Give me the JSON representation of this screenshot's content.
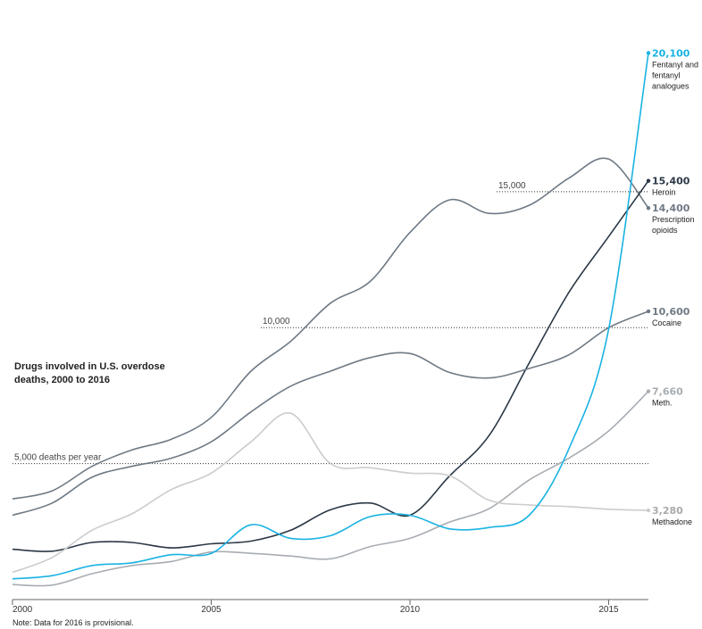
{
  "chart_data": {
    "type": "line",
    "title_lines": [
      "Drugs involved in U.S. overdose",
      "deaths, 2000 to 2016"
    ],
    "note": "Note: Data for 2016 is provisional.",
    "x": [
      2000,
      2001,
      2002,
      2003,
      2004,
      2005,
      2006,
      2007,
      2008,
      2009,
      2010,
      2011,
      2012,
      2013,
      2014,
      2015,
      2016
    ],
    "x_ticks": [
      "2000",
      "2005",
      "2010",
      "2015"
    ],
    "xlim": [
      2000,
      2016
    ],
    "ylim": [
      0,
      21000
    ],
    "reference_lines": [
      {
        "value": 15000,
        "label": "15,000"
      },
      {
        "value": 10000,
        "label": "10,000"
      },
      {
        "value": 5000,
        "label": "5,000 deaths per year"
      }
    ],
    "series": [
      {
        "key": "prescription",
        "end_value": "14,400",
        "label_lines": [
          "Prescription",
          "opioids"
        ],
        "color": "#6f7a85",
        "values": [
          3700,
          4000,
          4900,
          5500,
          5900,
          6700,
          8400,
          9500,
          10900,
          11700,
          13500,
          14700,
          14200,
          14500,
          15500,
          16200,
          14400
        ]
      },
      {
        "key": "heroin",
        "end_value": "15,400",
        "label_lines": [
          "Heroin"
        ],
        "color": "#2b3846",
        "values": [
          1850,
          1780,
          2100,
          2100,
          1900,
          2050,
          2150,
          2550,
          3300,
          3550,
          3100,
          4550,
          6050,
          8700,
          11300,
          13350,
          15400
        ]
      },
      {
        "key": "cocaine",
        "end_value": "10,600",
        "label_lines": [
          "Cocaine"
        ],
        "color": "#6f7a85",
        "values": [
          3100,
          3550,
          4500,
          4900,
          5200,
          5800,
          6900,
          7850,
          8400,
          8900,
          9050,
          8350,
          8150,
          8500,
          9000,
          10000,
          10600
        ]
      },
      {
        "key": "meth",
        "end_value": "7,660",
        "label_lines": [
          "Meth."
        ],
        "color": "#a8adb2",
        "values": [
          550,
          530,
          950,
          1250,
          1400,
          1750,
          1700,
          1600,
          1500,
          1950,
          2250,
          2850,
          3350,
          4400,
          5200,
          6200,
          7660
        ]
      },
      {
        "key": "methadone",
        "end_value": "3,280",
        "label_lines": [
          "Methadone"
        ],
        "color": "#cccccc",
        "values": [
          1000,
          1550,
          2550,
          3150,
          4050,
          4650,
          5800,
          6850,
          5000,
          4850,
          4650,
          4550,
          3650,
          3480,
          3420,
          3320,
          3280
        ]
      },
      {
        "key": "fentanyl",
        "end_value": "20,100",
        "label_lines": [
          "Fentanyl and",
          "fentanyl",
          "analogues"
        ],
        "color": "#1ab3e3",
        "values": [
          760,
          880,
          1250,
          1350,
          1650,
          1700,
          2750,
          2250,
          2350,
          3050,
          3100,
          2600,
          2650,
          3100,
          5550,
          9950,
          20100
        ]
      }
    ]
  }
}
